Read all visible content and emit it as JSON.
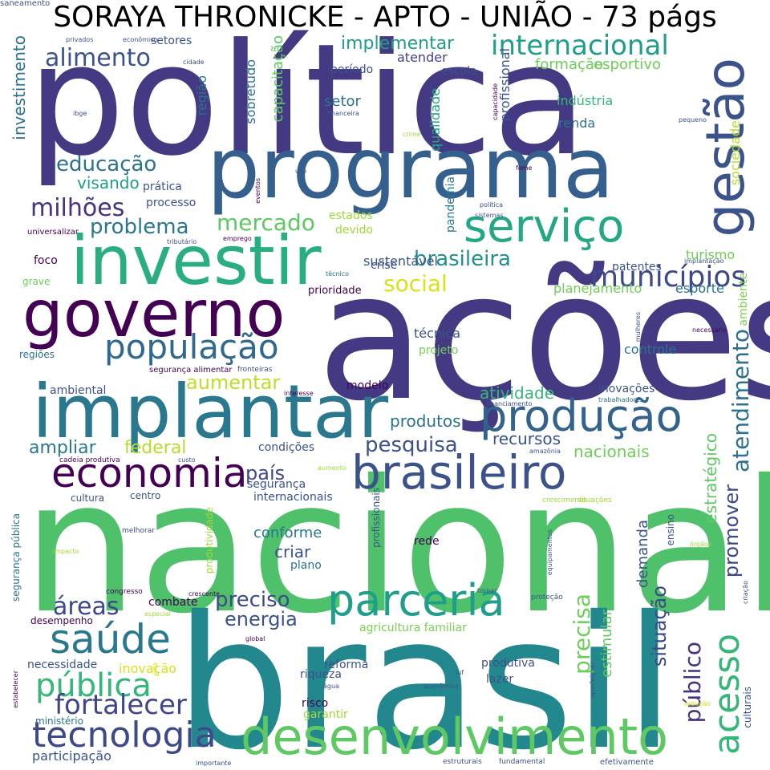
{
  "title": "SORAYA THRONICKE - APTO - UNIÃO - 73 págs",
  "words": [
    {
      "text": "política",
      "color": "#443a83"
    },
    {
      "text": "ações",
      "color": "#443a83"
    },
    {
      "text": "nacional",
      "color": "#4fc16b"
    },
    {
      "text": "brasil",
      "color": "#23888e"
    },
    {
      "text": "programa",
      "color": "#355f8d"
    },
    {
      "text": "implantar",
      "color": "#2a788e"
    },
    {
      "text": "investir",
      "color": "#29af7f"
    },
    {
      "text": "governo",
      "color": "#440154"
    },
    {
      "text": "desenvolvimento",
      "color": "#5ec962"
    },
    {
      "text": "brasileiro",
      "color": "#3b528b"
    },
    {
      "text": "produção",
      "color": "#33638d"
    },
    {
      "text": "serviço",
      "color": "#22a884"
    },
    {
      "text": "gestão",
      "color": "#3b528b"
    },
    {
      "text": "economia",
      "color": "#440154"
    },
    {
      "text": "parceria",
      "color": "#1f9e89"
    },
    {
      "text": "saúde",
      "color": "#2a788e"
    },
    {
      "text": "população",
      "color": "#31688e"
    },
    {
      "text": "tecnologia",
      "color": "#3e4989"
    },
    {
      "text": "acesso",
      "color": "#35b779"
    },
    {
      "text": "pública",
      "color": "#35b779"
    },
    {
      "text": "fortalecer",
      "color": "#404688"
    },
    {
      "text": "municípios",
      "color": "#3e4989"
    },
    {
      "text": "atendimento",
      "color": "#2c728e"
    },
    {
      "text": "internacional",
      "color": "#1f9e89"
    },
    {
      "text": "precisa",
      "color": "#6ece58"
    },
    {
      "text": "promover",
      "color": "#3e4989"
    },
    {
      "text": "público",
      "color": "#46327e"
    },
    {
      "text": "situação",
      "color": "#3e4989"
    },
    {
      "text": "educação",
      "color": "#2c728e"
    },
    {
      "text": "milhões",
      "color": "#46327e"
    },
    {
      "text": "alimento",
      "color": "#3b528b"
    },
    {
      "text": "social",
      "color": "#d8e219"
    },
    {
      "text": "mercado",
      "color": "#5ec962"
    },
    {
      "text": "brasileira",
      "color": "#21918c"
    },
    {
      "text": "problema",
      "color": "#2a788e"
    },
    {
      "text": "pesquisa",
      "color": "#3b528b"
    },
    {
      "text": "aumentar",
      "color": "#bddf26"
    },
    {
      "text": "país",
      "color": "#404688"
    },
    {
      "text": "energia",
      "color": "#3b528b"
    },
    {
      "text": "preciso",
      "color": "#3e4989"
    },
    {
      "text": "áreas",
      "color": "#3e4989"
    },
    {
      "text": "implementar",
      "color": "#1f9e89"
    },
    {
      "text": "investimento",
      "color": "#2c728e"
    },
    {
      "text": "capacitação",
      "color": "#5ec962"
    },
    {
      "text": "federal",
      "color": "#b5de2b"
    },
    {
      "text": "ampliar",
      "color": "#2a788e"
    },
    {
      "text": "visando",
      "color": "#1f9e89"
    },
    {
      "text": "atividade",
      "color": "#35b779"
    },
    {
      "text": "recursos",
      "color": "#3b528b"
    },
    {
      "text": "nacionais",
      "color": "#6ece58"
    },
    {
      "text": "produtos",
      "color": "#2c728e"
    },
    {
      "text": "criar",
      "color": "#3b528b"
    },
    {
      "text": "conforme",
      "color": "#2a788e"
    },
    {
      "text": "estratégico",
      "color": "#5ec962"
    },
    {
      "text": "demanda",
      "color": "#3b528b"
    },
    {
      "text": "estimular",
      "color": "#5ec962"
    },
    {
      "text": "controle",
      "color": "#2c728e"
    },
    {
      "text": "técnica",
      "color": "#3b528b"
    },
    {
      "text": "setor",
      "color": "#2c728e"
    },
    {
      "text": "renda",
      "color": "#2c728e"
    },
    {
      "text": "formação",
      "color": "#6ece58"
    },
    {
      "text": "esportivo",
      "color": "#6ece58"
    },
    {
      "text": "indústria",
      "color": "#35b779"
    },
    {
      "text": "profissional",
      "color": "#3b528b"
    },
    {
      "text": "sociedade",
      "color": "#b5de2b"
    },
    {
      "text": "planejamento",
      "color": "#6ece58"
    },
    {
      "text": "esporte",
      "color": "#2c728e"
    },
    {
      "text": "turismo",
      "color": "#6ece58"
    },
    {
      "text": "ambiente",
      "color": "#7ad151"
    },
    {
      "text": "sustentável",
      "color": "#3b528b"
    },
    {
      "text": "crise",
      "color": "#3b528b"
    },
    {
      "text": "patentes",
      "color": "#3b528b"
    },
    {
      "text": "estados",
      "color": "#a0da39"
    },
    {
      "text": "devido",
      "color": "#a0da39"
    },
    {
      "text": "pandemia",
      "color": "#2a788e"
    },
    {
      "text": "qualidade",
      "color": "#22a884"
    },
    {
      "text": "atender",
      "color": "#414487"
    },
    {
      "text": "escola",
      "color": "#3b528b"
    },
    {
      "text": "período",
      "color": "#3b528b"
    },
    {
      "text": "setores",
      "color": "#3b528b"
    },
    {
      "text": "sobretudo",
      "color": "#2c728e"
    },
    {
      "text": "região",
      "color": "#2c728e"
    },
    {
      "text": "processo",
      "color": "#3b528b"
    },
    {
      "text": "prática",
      "color": "#3b528b"
    },
    {
      "text": "foco",
      "color": "#440154"
    },
    {
      "text": "grave",
      "color": "#6ece58"
    },
    {
      "text": "prioridade",
      "color": "#440154"
    },
    {
      "text": "projeto",
      "color": "#7ad151"
    },
    {
      "text": "ambiental",
      "color": "#3b528b"
    },
    {
      "text": "modelo",
      "color": "#440154"
    },
    {
      "text": "inovações",
      "color": "#3b528b"
    },
    {
      "text": "regiões",
      "color": "#2c728e"
    },
    {
      "text": "condições",
      "color": "#3b528b"
    },
    {
      "text": "segurança",
      "color": "#3b528b"
    },
    {
      "text": "internacionais",
      "color": "#3b528b"
    },
    {
      "text": "cultura",
      "color": "#3b528b"
    },
    {
      "text": "centro",
      "color": "#3b528b"
    },
    {
      "text": "rede",
      "color": "#440154"
    },
    {
      "text": "plano",
      "color": "#2c728e"
    },
    {
      "text": "combate",
      "color": "#440154"
    },
    {
      "text": "desempenho",
      "color": "#440154"
    },
    {
      "text": "necessidade",
      "color": "#3b528b"
    },
    {
      "text": "inovação",
      "color": "#d8e219"
    },
    {
      "text": "agricultura familiar",
      "color": "#7ad151"
    },
    {
      "text": "reforma",
      "color": "#3b528b"
    },
    {
      "text": "riqueza",
      "color": "#3b528b"
    },
    {
      "text": "risco",
      "color": "#440154"
    },
    {
      "text": "garantir",
      "color": "#a0da39"
    },
    {
      "text": "produtiva",
      "color": "#3b528b"
    },
    {
      "text": "lazer",
      "color": "#3b528b"
    },
    {
      "text": "ministério",
      "color": "#2c728e"
    },
    {
      "text": "participação",
      "color": "#3b528b"
    },
    {
      "text": "ensino",
      "color": "#3b528b"
    },
    {
      "text": "segurança pública",
      "color": "#2c728e"
    },
    {
      "text": "profissionais",
      "color": "#3b528b"
    },
    {
      "text": "produtividade",
      "color": "#a0da39"
    },
    {
      "text": "culturais",
      "color": "#3b528b"
    },
    {
      "text": "segurança alimentar",
      "color": "#440154"
    },
    {
      "text": "fronteiras",
      "color": "#3b528b"
    },
    {
      "text": "mulheres",
      "color": "#3b528b"
    },
    {
      "text": "necessário",
      "color": "#440154"
    },
    {
      "text": "trabalhadores",
      "color": "#2c728e"
    },
    {
      "text": "interesse",
      "color": "#440154"
    },
    {
      "text": "financiamento",
      "color": "#3b528b"
    },
    {
      "text": "amazônia",
      "color": "#3b528b"
    },
    {
      "text": "cadeia produtiva",
      "color": "#440154"
    },
    {
      "text": "custo",
      "color": "#3b528b"
    },
    {
      "text": "aumento",
      "color": "#a0da39"
    },
    {
      "text": "crescimento",
      "color": "#a0da39"
    },
    {
      "text": "situações",
      "color": "#a0da39"
    },
    {
      "text": "melhorar",
      "color": "#3b528b"
    },
    {
      "text": "impacto",
      "color": "#a0da39"
    },
    {
      "text": "equipamentos",
      "color": "#3b528b"
    },
    {
      "text": "órgãos",
      "color": "#a0da39"
    },
    {
      "text": "congresso",
      "color": "#440154"
    },
    {
      "text": "crescente",
      "color": "#440154"
    },
    {
      "text": "tornar",
      "color": "#3b528b"
    },
    {
      "text": "proteção",
      "color": "#3b528b"
    },
    {
      "text": "criação",
      "color": "#3b528b"
    },
    {
      "text": "especial",
      "color": "#a0da39"
    },
    {
      "text": "global",
      "color": "#440154"
    },
    {
      "text": "água",
      "color": "#3b528b"
    },
    {
      "text": "econômica",
      "color": "#3b528b"
    },
    {
      "text": "iuf",
      "color": "#3b528b"
    },
    {
      "text": "aperfeiçoar",
      "color": "#3b528b"
    },
    {
      "text": "redução",
      "color": "#d8e219"
    },
    {
      "text": "estabelecer",
      "color": "#440154"
    },
    {
      "text": "vida",
      "color": "#d8e219"
    },
    {
      "text": "importante",
      "color": "#3b528b"
    },
    {
      "text": "estruturais",
      "color": "#3b528b"
    },
    {
      "text": "fundamental",
      "color": "#3b528b"
    },
    {
      "text": "efetivamente",
      "color": "#3b528b"
    },
    {
      "text": "privados",
      "color": "#3b528b"
    },
    {
      "text": "econômico",
      "color": "#3b528b"
    },
    {
      "text": "cidade",
      "color": "#3b528b"
    },
    {
      "text": "ibge",
      "color": "#3b528b"
    },
    {
      "text": "financeira",
      "color": "#3b528b"
    },
    {
      "text": "crime",
      "color": "#a0da39"
    },
    {
      "text": "capacidade",
      "color": "#440154"
    },
    {
      "text": "pequeno",
      "color": "#3b528b"
    },
    {
      "text": "fome",
      "color": "#440154"
    },
    {
      "text": "uso",
      "color": "#3b528b"
    },
    {
      "text": "eventos",
      "color": "#440154"
    },
    {
      "text": "política",
      "color": "#3b528b"
    },
    {
      "text": "sistemas",
      "color": "#3b528b"
    },
    {
      "text": "tributário",
      "color": "#3b528b"
    },
    {
      "text": "emprego",
      "color": "#440154"
    },
    {
      "text": "universalizar",
      "color": "#440154"
    },
    {
      "text": "técnico",
      "color": "#2c728e"
    },
    {
      "text": "implantação",
      "color": "#3b528b"
    },
    {
      "text": "saneamento",
      "color": "#3b528b"
    }
  ]
}
